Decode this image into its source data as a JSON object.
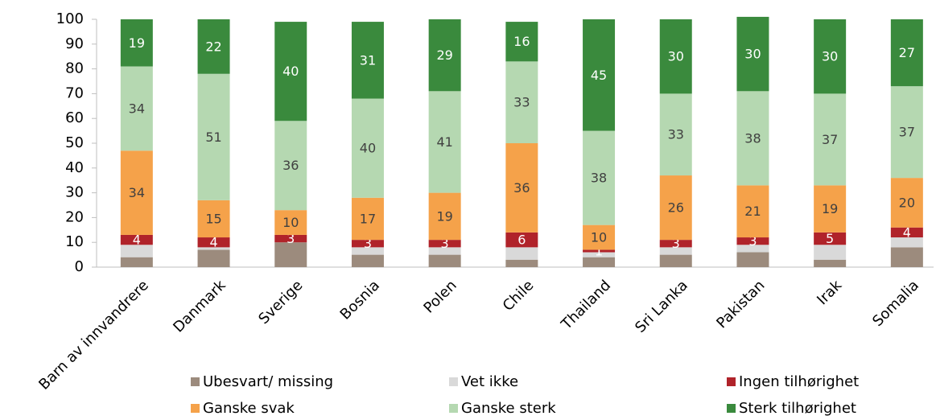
{
  "chart_data": {
    "type": "stacked_bar",
    "categories": [
      "Barn av innvandrere",
      "Danmark",
      "Sverige",
      "Bosnia",
      "Polen",
      "Chile",
      "Thailand",
      "Sri Lanka",
      "Pakistan",
      "Irak",
      "Somalia"
    ],
    "series": [
      {
        "name": "Ubesvart/ missing",
        "color": "#9c8b7d",
        "labels": false,
        "values": [
          4,
          7,
          10,
          5,
          5,
          3,
          4,
          5,
          6,
          3,
          8
        ]
      },
      {
        "name": "Vet ikke",
        "color": "#d9d9d9",
        "labels": false,
        "values": [
          5,
          1,
          0,
          3,
          3,
          5,
          2,
          3,
          3,
          6,
          4
        ]
      },
      {
        "name": "Ingen tilhørighet",
        "color": "#b0232a",
        "labels": true,
        "label_color": "#ffffff",
        "values": [
          4,
          4,
          3,
          3,
          3,
          6,
          1,
          3,
          3,
          5,
          4
        ]
      },
      {
        "name": "Ganske svak",
        "color": "#f5a24a",
        "labels": true,
        "label_color": "#404040",
        "values": [
          34,
          15,
          10,
          17,
          19,
          36,
          10,
          26,
          21,
          19,
          20
        ]
      },
      {
        "name": "Ganske sterk",
        "color": "#b5d8b1",
        "labels": true,
        "label_color": "#404040",
        "values": [
          34,
          51,
          36,
          40,
          41,
          33,
          38,
          33,
          38,
          37,
          37
        ]
      },
      {
        "name": "Sterk tilhørighet",
        "color": "#3a8a3d",
        "labels": true,
        "label_color": "#ffffff",
        "values": [
          19,
          22,
          40,
          31,
          29,
          16,
          45,
          30,
          30,
          30,
          27
        ]
      }
    ],
    "ylim": [
      0,
      100
    ],
    "yticks": [
      0,
      10,
      20,
      30,
      40,
      50,
      60,
      70,
      80,
      90,
      100
    ],
    "grid": false
  }
}
